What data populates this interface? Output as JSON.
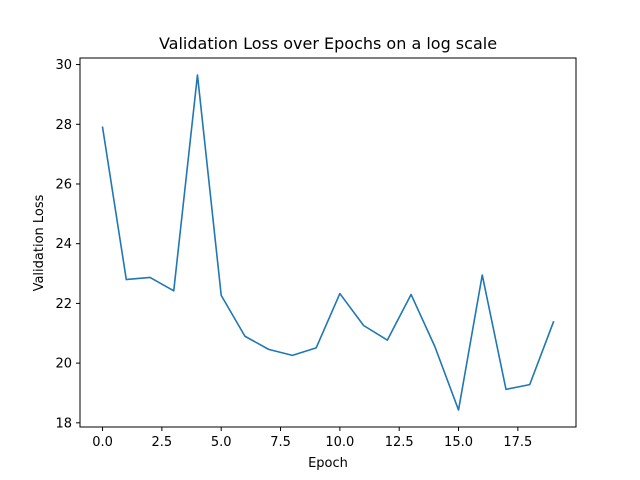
{
  "chart_data": {
    "type": "line",
    "title": "Validation Loss over Epochs on a log scale",
    "xlabel": "Epoch",
    "ylabel": "Validation Loss",
    "xlim": [
      -0.95,
      19.95
    ],
    "ylim": [
      17.86,
      30.22
    ],
    "xticks": [
      0,
      2.5,
      5,
      7.5,
      10,
      12.5,
      15,
      17.5
    ],
    "xtick_labels": [
      "0.0",
      "2.5",
      "5.0",
      "7.5",
      "10.0",
      "12.5",
      "15.0",
      "17.5"
    ],
    "yticks": [
      18,
      20,
      22,
      24,
      26,
      28,
      30
    ],
    "ytick_labels": [
      "18",
      "20",
      "22",
      "24",
      "26",
      "28",
      "30"
    ],
    "grid": false,
    "color": "#1f77b4",
    "x": [
      0,
      1,
      2,
      3,
      4,
      5,
      6,
      7,
      8,
      9,
      10,
      11,
      12,
      13,
      14,
      15,
      16,
      17,
      18,
      19
    ],
    "series": [
      {
        "values": [
          27.9,
          22.8,
          22.87,
          22.42,
          29.65,
          22.27,
          20.9,
          20.46,
          20.26,
          20.51,
          22.33,
          21.26,
          20.77,
          22.3,
          20.56,
          18.43,
          22.95,
          19.12,
          19.28,
          21.38
        ]
      }
    ]
  }
}
